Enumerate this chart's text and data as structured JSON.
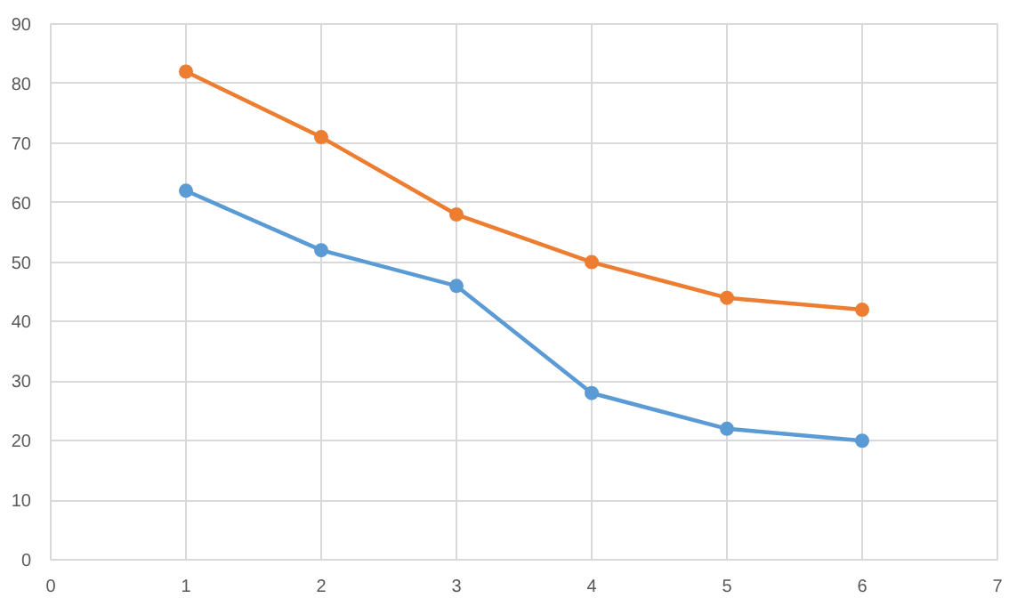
{
  "chart_data": {
    "type": "line",
    "x": [
      1,
      2,
      3,
      4,
      5,
      6
    ],
    "series": [
      {
        "color": "#5b9bd5",
        "values": [
          62,
          52,
          46,
          28,
          22,
          20
        ]
      },
      {
        "color": "#ed7d31",
        "values": [
          82,
          71,
          58,
          50,
          44,
          42
        ]
      }
    ],
    "xlim": [
      0,
      7
    ],
    "xticks": [
      0,
      1,
      2,
      3,
      4,
      5,
      6,
      7
    ],
    "ylim": [
      0,
      90
    ],
    "yticks": [
      0,
      10,
      20,
      30,
      40,
      50,
      60,
      70,
      80,
      90
    ],
    "grid": true,
    "marker": "circle",
    "line_style": "solid"
  }
}
